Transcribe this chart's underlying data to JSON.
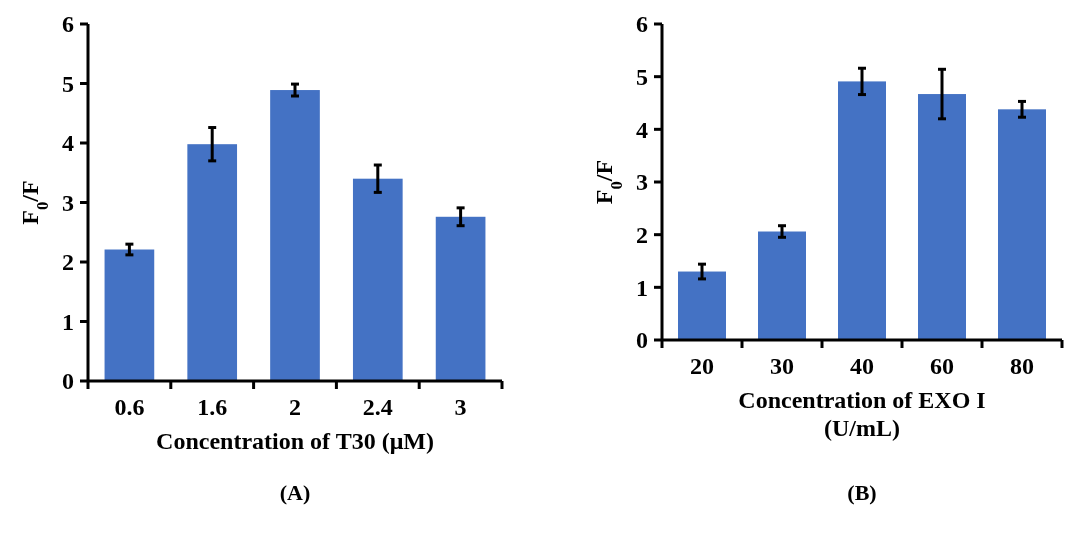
{
  "chart_data": [
    {
      "type": "bar",
      "categories": [
        "0.6",
        "1.6",
        "2",
        "2.4",
        "3"
      ],
      "values": [
        2.21,
        3.98,
        4.89,
        3.4,
        2.76
      ],
      "errors": [
        0.09,
        0.28,
        0.1,
        0.23,
        0.15
      ],
      "color": "#4472c4",
      "xlabel": "Concentration of T30 (μM)",
      "ylabel": "F$_{0}$/F",
      "ylim": [
        0,
        6
      ],
      "yticks": [
        0,
        1,
        2,
        3,
        4,
        5,
        6
      ],
      "annotations": [
        "(A)"
      ]
    },
    {
      "type": "bar",
      "categories": [
        "20",
        "30",
        "40",
        "60",
        "80"
      ],
      "values": [
        1.3,
        2.06,
        4.91,
        4.67,
        4.38
      ],
      "errors": [
        0.14,
        0.11,
        0.25,
        0.47,
        0.15
      ],
      "color": "#4472c4",
      "xlabel": "Concentration of EXO I (U/mL)",
      "ylabel": "F$_{0}$/F",
      "ylim": [
        0,
        6
      ],
      "yticks": [
        0,
        1,
        2,
        3,
        4,
        5,
        6
      ],
      "annotations": [
        "(B)"
      ]
    }
  ]
}
